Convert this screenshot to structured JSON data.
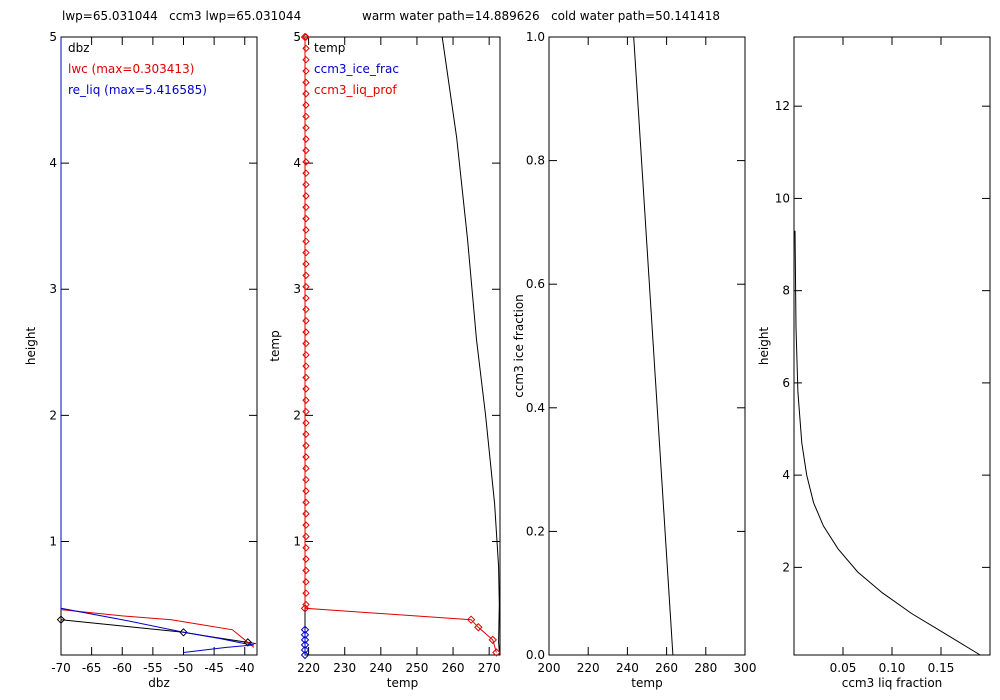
{
  "header": {
    "lwp_text": "lwp=65.031044   ccm3 lwp=65.031044",
    "paths_text": "warm water path=14.889626   cold water path=50.141418"
  },
  "colors": {
    "black": "#000000",
    "red": "#e00000",
    "blue": "#0000cc"
  },
  "chart_data": [
    {
      "type": "line",
      "xlabel": "dbz",
      "ylabel": "height",
      "xlim": [
        -70,
        -38
      ],
      "ylim": [
        0.1,
        5
      ],
      "xticks": [
        -70,
        -65,
        -60,
        -55,
        -50,
        -45,
        -40
      ],
      "yticks": [
        1,
        2,
        3,
        4,
        5
      ],
      "legend_position": "top-left",
      "series": [
        {
          "name": "dbz",
          "color": "#000000",
          "marker": "diamond",
          "marker_every": 2,
          "x": [
            -70,
            -60,
            -50,
            -45,
            -39.5,
            -38.2
          ],
          "y": [
            0.38,
            0.33,
            0.28,
            0.24,
            0.2,
            0.19
          ]
        },
        {
          "name": "lwc (max=0.303413)",
          "color": "#e00000",
          "marker": "none",
          "x": [
            -70,
            -60,
            -52,
            -47,
            -42,
            -38.5
          ],
          "y": [
            0.46,
            0.41,
            0.38,
            0.34,
            0.3,
            0.16
          ]
        },
        {
          "name": "re_liq (max=5.416585)",
          "color": "#0000cc",
          "marker": "none",
          "x": [
            -70,
            -70,
            -60,
            -50,
            -44,
            -40,
            -38.5,
            -43,
            -50
          ],
          "y": [
            5,
            0.47,
            0.38,
            0.28,
            0.23,
            0.19,
            0.18,
            0.16,
            0.12
          ]
        }
      ]
    },
    {
      "type": "line",
      "xlabel": "temp",
      "ylabel": "temp",
      "xlim": [
        219,
        273
      ],
      "ylim": [
        0.1,
        5
      ],
      "xticks": [
        220,
        230,
        240,
        250,
        260,
        270
      ],
      "yticks": [
        1,
        2,
        3,
        4,
        5
      ],
      "legend_position": "top-left",
      "series": [
        {
          "name": "temp",
          "color": "#000000",
          "marker": "none",
          "x": [
            257,
            261,
            264,
            266.5,
            269,
            271.5,
            272.6,
            272.8,
            272.6,
            272.9
          ],
          "y": [
            5,
            4.2,
            3.4,
            2.6,
            2.0,
            1.3,
            0.8,
            0.5,
            0.2,
            0.1
          ]
        },
        {
          "name": "ccm3_ice_frac",
          "color": "#0000cc",
          "marker": "diamond",
          "x": [
            219,
            219,
            219,
            219,
            219,
            219
          ],
          "y": [
            0.1,
            0.14,
            0.18,
            0.22,
            0.26,
            0.3
          ]
        },
        {
          "name": "ccm3_liq_prof",
          "color": "#e00000",
          "marker": "diamond",
          "x": [
            219,
            219,
            265,
            267,
            271,
            272
          ],
          "y": [
            5,
            0.47,
            0.38,
            0.32,
            0.22,
            0.12
          ]
        }
      ]
    },
    {
      "type": "line",
      "xlabel": "temp",
      "ylabel": "ccm3 ice fraction",
      "xlim": [
        200,
        300
      ],
      "ylim": [
        0,
        1
      ],
      "xticks": [
        200,
        220,
        240,
        260,
        280,
        300
      ],
      "yticks": [
        "0.0",
        "0.2",
        "0.4",
        "0.6",
        "0.8",
        "1.0"
      ],
      "series": [
        {
          "name": "",
          "color": "#000000",
          "marker": "none",
          "x": [
            243.2,
            263.2
          ],
          "y": [
            1.0,
            0.0
          ]
        }
      ]
    },
    {
      "type": "line",
      "xlabel": "ccm3 liq fraction",
      "ylabel": "height",
      "xlim": [
        0,
        0.2
      ],
      "ylim": [
        0.1,
        13.5
      ],
      "xticks": [
        "0.05",
        "0.10",
        "0.15"
      ],
      "yticks": [
        2,
        4,
        6,
        8,
        10,
        12
      ],
      "series": [
        {
          "name": "",
          "color": "#000000",
          "marker": "none",
          "x": [
            0.001,
            0.002,
            0.004,
            0.008,
            0.013,
            0.02,
            0.03,
            0.045,
            0.065,
            0.09,
            0.12,
            0.155,
            0.19
          ],
          "y": [
            9.3,
            7.2,
            5.8,
            4.7,
            4.0,
            3.4,
            2.9,
            2.4,
            1.9,
            1.45,
            1.0,
            0.55,
            0.1
          ]
        }
      ]
    }
  ]
}
